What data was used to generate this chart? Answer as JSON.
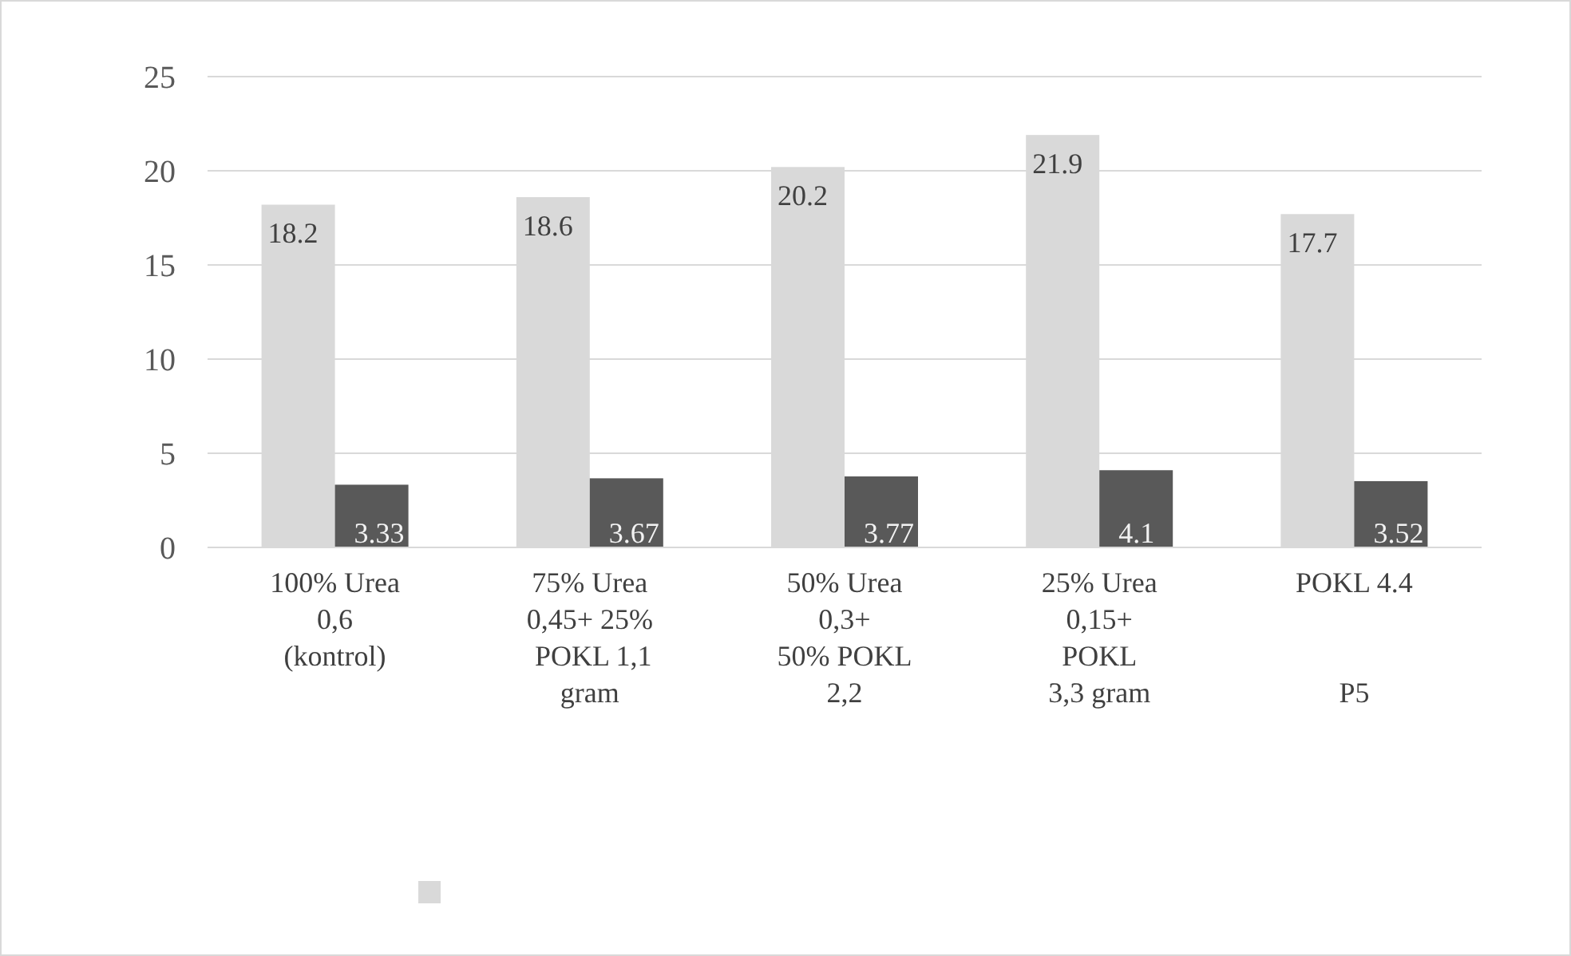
{
  "chart_data": {
    "type": "bar",
    "categories": [
      "100% Urea\n0,6\n(kontrol)",
      "75% Urea\n0,45+ 25%\n POKL 1,1\ngram",
      "50% Urea\n0,3+\n50% POKL\n2,2",
      "25% Urea\n0,15+\nPOKL\n3,3 gram",
      "POKL 4.4\n\n\nP5"
    ],
    "series": [
      {
        "color": "#d9d9d9",
        "values": [
          18.2,
          18.6,
          20.2,
          21.9,
          17.7
        ]
      },
      {
        "color": "#595959",
        "values": [
          3.33,
          3.67,
          3.77,
          4.1,
          3.52
        ]
      }
    ],
    "ylim": [
      0,
      25
    ],
    "yticks": [
      0,
      5,
      10,
      15,
      20,
      25
    ],
    "grid": "y",
    "data_labels": true
  }
}
